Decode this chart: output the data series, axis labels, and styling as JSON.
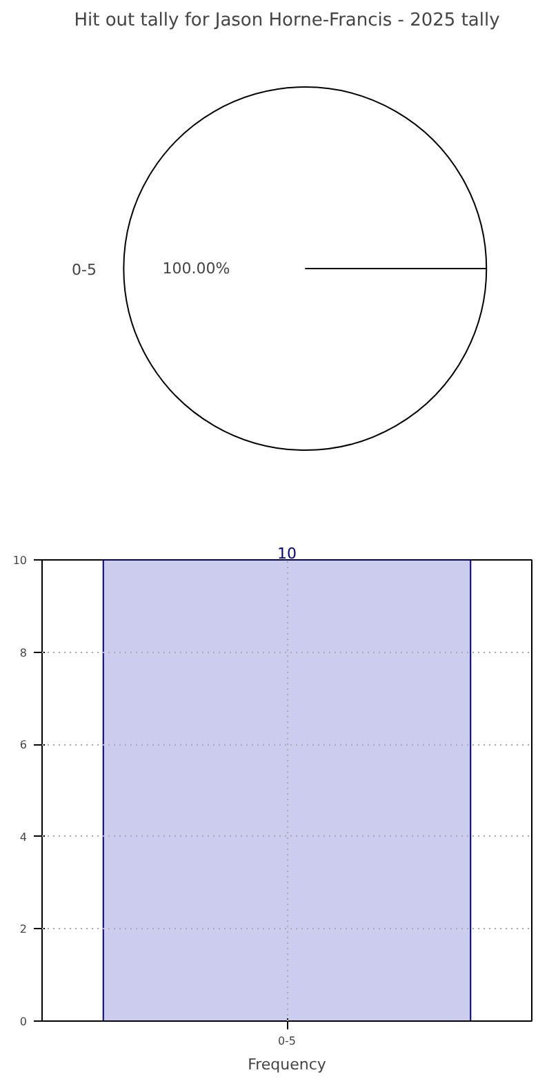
{
  "chart_data": [
    {
      "type": "pie",
      "title": "Hit out tally for Jason Horne-Francis - 2025 tally",
      "categories": [
        "0-5"
      ],
      "values": [
        100
      ],
      "colors": [
        "#ffffff"
      ],
      "value_labels": [
        "100.00%"
      ]
    },
    {
      "type": "bar",
      "categories": [
        "0-5"
      ],
      "values": [
        10
      ],
      "color": "#ccccee",
      "xlabel": "Frequency",
      "ylim": [
        0,
        10
      ],
      "yticks": [
        0,
        2,
        4,
        6,
        8,
        10
      ],
      "grid": true,
      "data_labels": true
    }
  ]
}
